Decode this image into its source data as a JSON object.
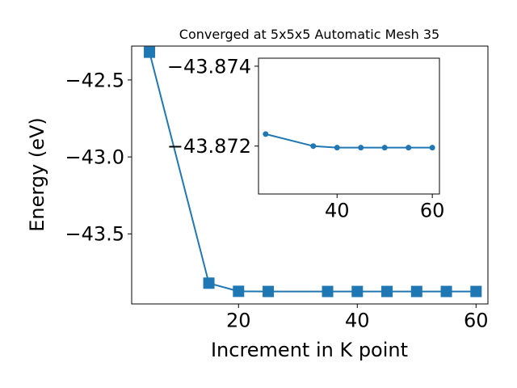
{
  "chart_data": [
    {
      "type": "line",
      "title": "Converged at 5x5x5 Automatic Mesh 35",
      "xlabel": "Increment in K point",
      "ylabel": "Energy (eV)",
      "xlim": [
        2,
        62
      ],
      "ylim": [
        -43.955,
        -42.28
      ],
      "xticks": [
        20,
        40,
        60
      ],
      "xtick_labels": [
        "20",
        "40",
        "60"
      ],
      "yticks": [
        -42.5,
        -43.0,
        -43.5
      ],
      "ytick_labels": [
        "−42.5",
        "−43.0",
        "−43.5"
      ],
      "grid": false,
      "marker": "square",
      "color": "#1f77b4",
      "series": [
        {
          "x": [
            5,
            15,
            20,
            25,
            35,
            40,
            45,
            50,
            55,
            60
          ],
          "y": [
            -42.32,
            -43.82,
            -43.873,
            -43.874,
            -43.874,
            -43.874,
            -43.874,
            -43.874,
            -43.874,
            -43.874
          ]
        }
      ]
    },
    {
      "type": "line",
      "title": "",
      "xlabel": "",
      "ylabel": "",
      "xlim": [
        23.5,
        61.5
      ],
      "ylim": [
        -43.8708,
        -43.8742
      ],
      "xticks": [
        40,
        60
      ],
      "xtick_labels": [
        "40",
        "60"
      ],
      "yticks": [
        -43.874,
        -43.872
      ],
      "ytick_labels": [
        "−43.874",
        "−43.872"
      ],
      "grid": false,
      "marker": "circle",
      "color": "#1f77b4",
      "series": [
        {
          "x": [
            25,
            35,
            40,
            45,
            50,
            55,
            60
          ],
          "y": [
            -43.8723,
            -43.872,
            -43.87196,
            -43.87196,
            -43.87196,
            -43.87196,
            -43.87196
          ]
        }
      ]
    }
  ]
}
